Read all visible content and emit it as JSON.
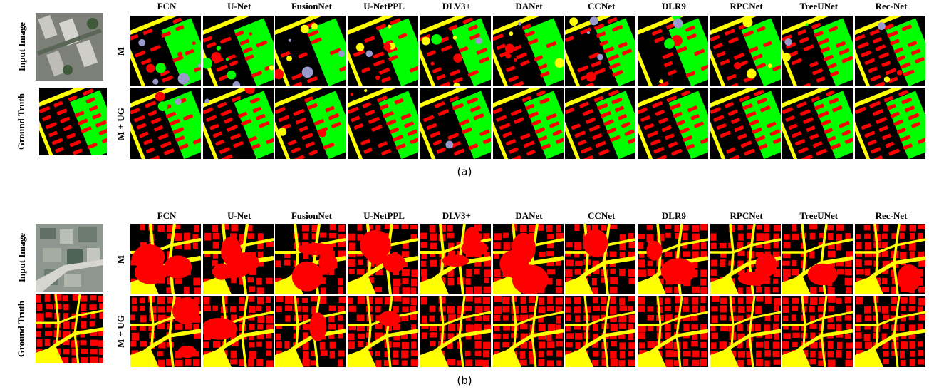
{
  "figure": {
    "methods": [
      "FCN",
      "U-Net",
      "FusionNet",
      "U-NetPPL",
      "DLV3+",
      "DANet",
      "CCNet",
      "DLR9",
      "RPCNet",
      "TreeUNet",
      "Rec-Net"
    ],
    "row_labels": [
      "M",
      "M + UG"
    ],
    "input_label": "Input Image",
    "gt_label": "Ground Truth",
    "panels": [
      {
        "caption": "(a)",
        "style": "rows"
      },
      {
        "caption": "(b)",
        "style": "blocks"
      }
    ],
    "colors": {
      "building": "#ff0000",
      "road": "#ffff00",
      "vegetation": "#00ff00",
      "background": "#000000",
      "other": "#9999cc"
    }
  }
}
